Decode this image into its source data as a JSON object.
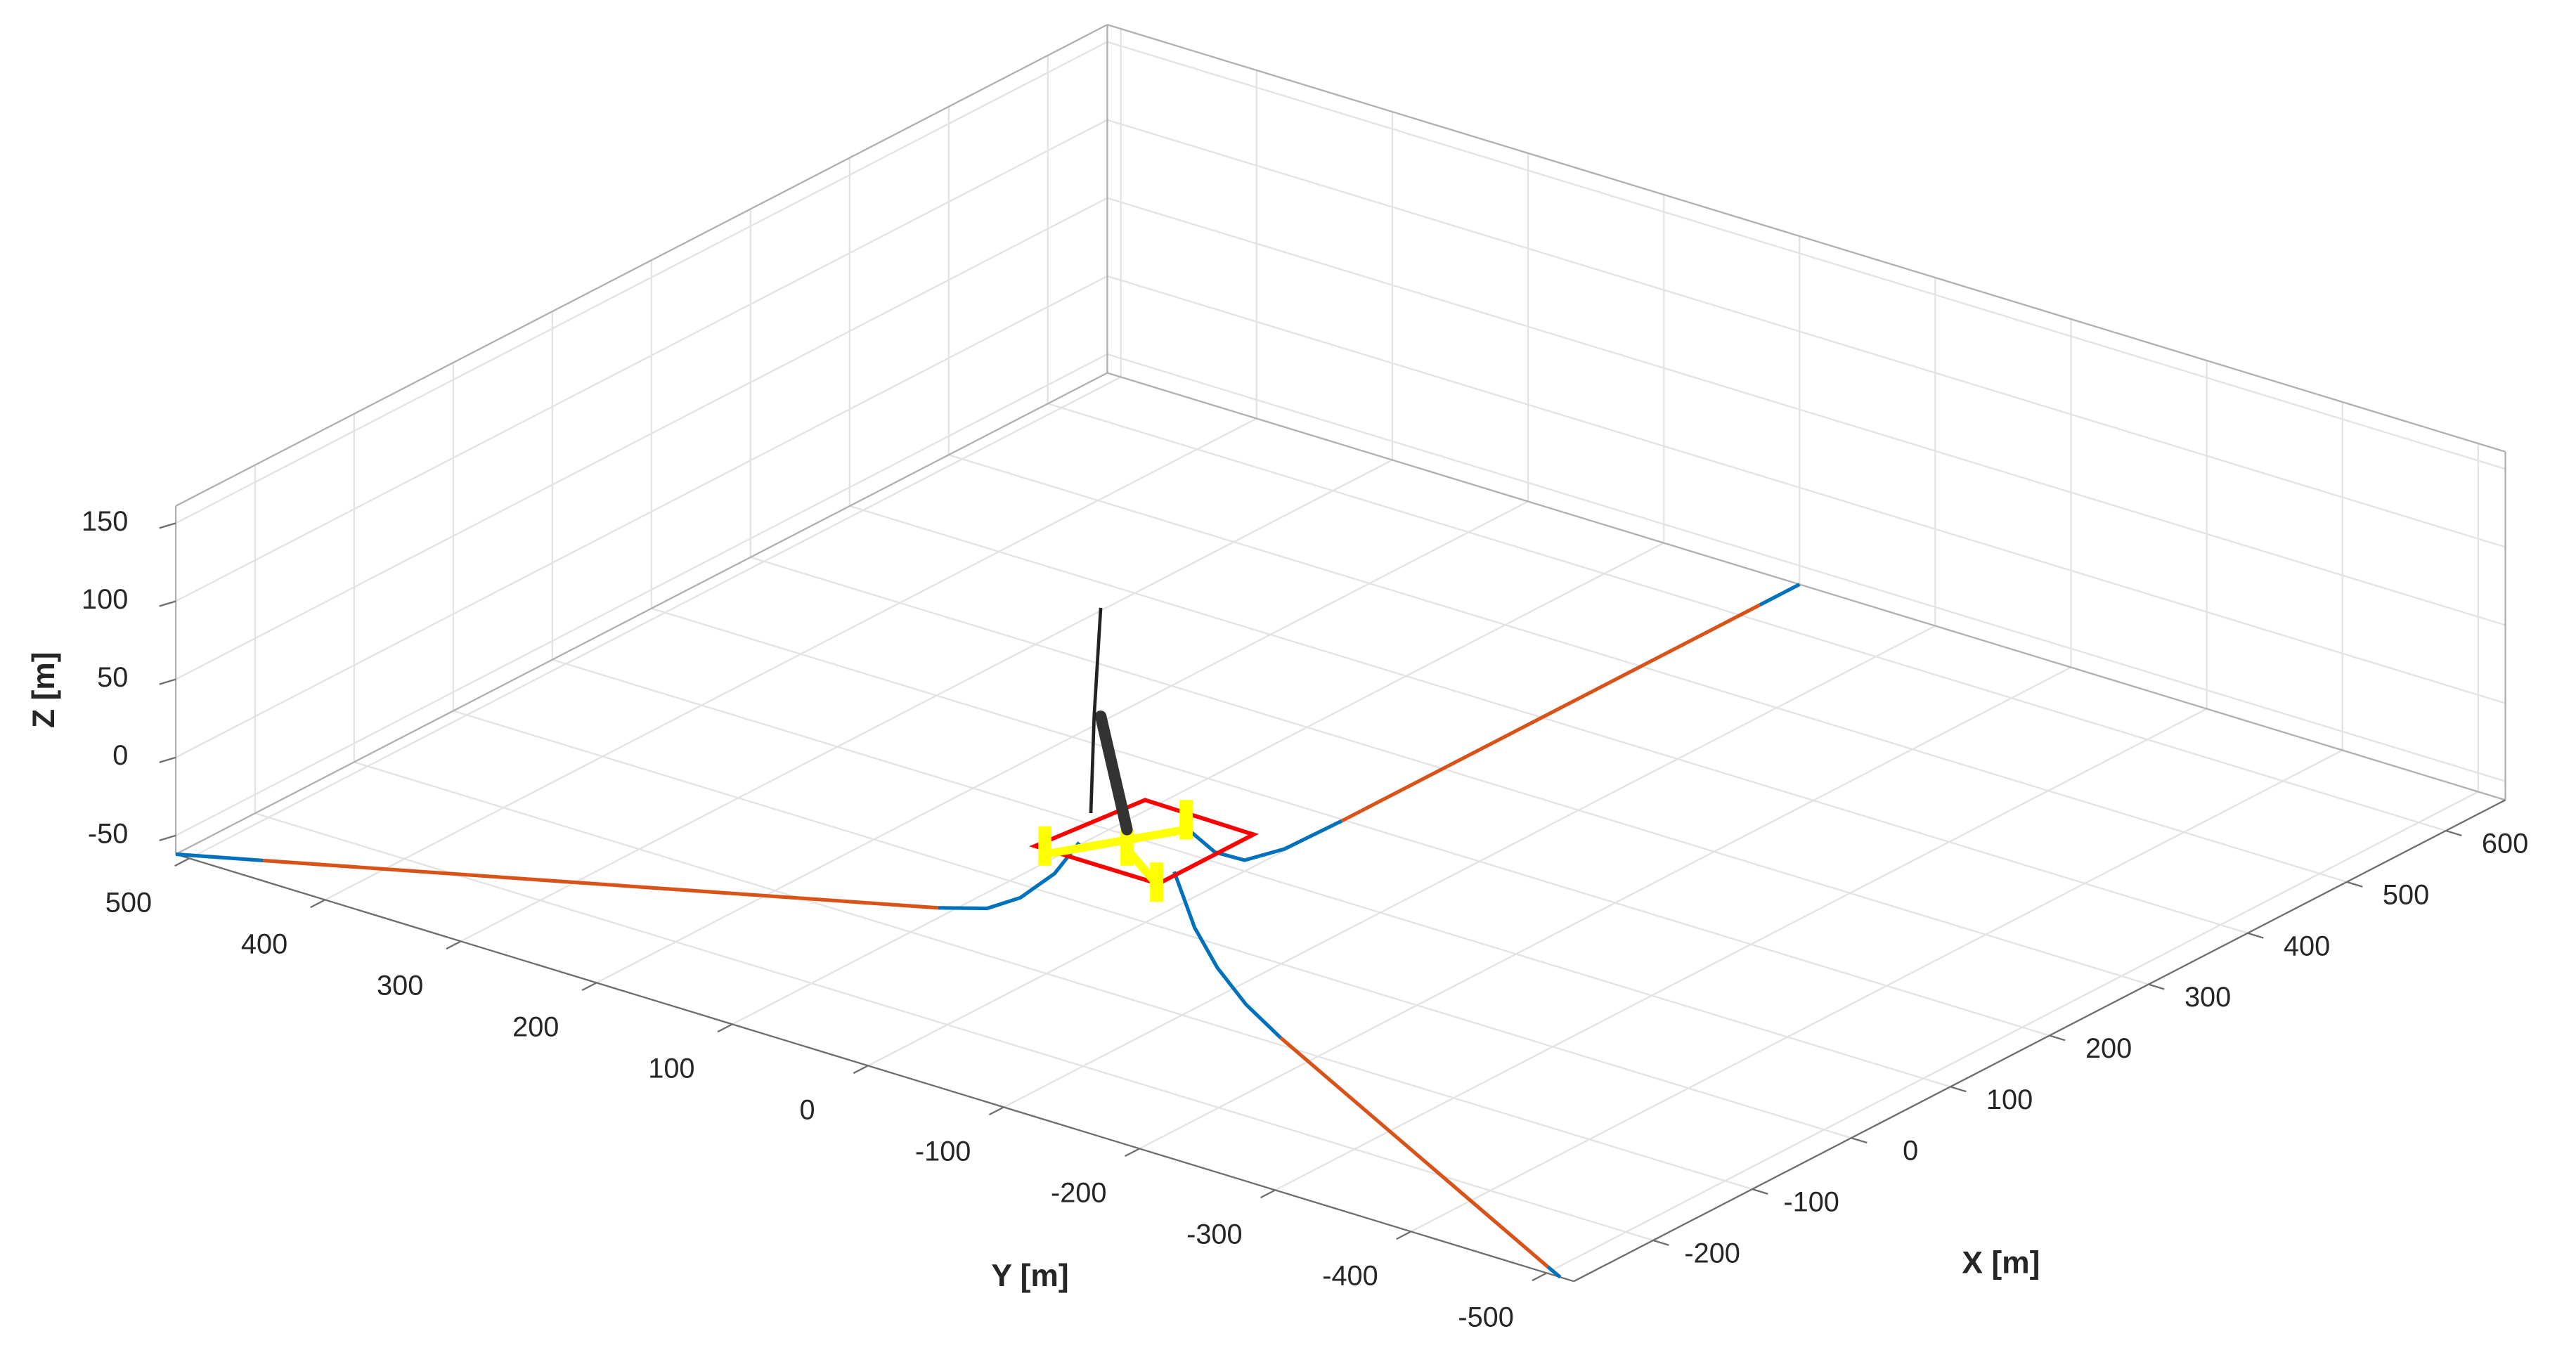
{
  "chart_data": {
    "type": "line3d",
    "xlabel": "X [m]",
    "ylabel": "Y [m]",
    "zlabel": "Z [m]",
    "xlim": [
      -280,
      660
    ],
    "ylim": [
      -520,
      510
    ],
    "zlim": [
      -62,
      161
    ],
    "xticks": [
      -200,
      -100,
      0,
      100,
      200,
      300,
      400,
      500,
      600
    ],
    "yticks": [
      -500,
      -400,
      -300,
      -200,
      -100,
      0,
      100,
      200,
      300,
      400,
      500
    ],
    "zticks": [
      -50,
      0,
      50,
      100,
      150
    ],
    "grid": true,
    "series": [
      {
        "color": "#0072bd",
        "x": [
          -19,
          -26,
          -36,
          -46,
          -60
        ],
        "y": [
          35,
          48,
          66,
          83,
          109
        ],
        "z": [
          -14,
          -35,
          -52,
          -60,
          -62
        ]
      },
      {
        "color": "#d95319",
        "x": [
          -60,
          -255
        ],
        "y": [
          109,
          464
        ],
        "z": [
          -62,
          -62
        ]
      },
      {
        "color": "#0072bd",
        "x": [
          -255,
          -280
        ],
        "y": [
          464,
          510
        ],
        "z": [
          -62,
          -62
        ]
      },
      {
        "color": "#0072bd",
        "x": [
          40,
          70,
          100,
          140,
          198
        ],
        "y": [
          0,
          0,
          0,
          0,
          0
        ],
        "z": [
          -14,
          -40,
          -55,
          -61,
          -62
        ]
      },
      {
        "color": "#d95319",
        "x": [
          198,
          620
        ],
        "y": [
          0,
          0
        ],
        "z": [
          -62,
          -62
        ]
      },
      {
        "color": "#0072bd",
        "x": [
          620,
          660
        ],
        "y": [
          0,
          0
        ],
        "z": [
          -62,
          -62
        ]
      },
      {
        "color": "#0072bd",
        "x": [
          -19,
          -34,
          -48,
          -67,
          -91
        ],
        "y": [
          -35,
          -61,
          -88,
          -123,
          -166
        ],
        "z": [
          -14,
          -38,
          -52,
          -60,
          -62
        ]
      },
      {
        "color": "#d95319",
        "x": [
          -91,
          -272
        ],
        "y": [
          -166,
          -495
        ],
        "z": [
          -62,
          -62
        ]
      },
      {
        "color": "#0072bd",
        "x": [
          -272,
          -280
        ],
        "y": [
          -495,
          -510
        ],
        "z": [
          -62,
          -62
        ]
      }
    ]
  }
}
